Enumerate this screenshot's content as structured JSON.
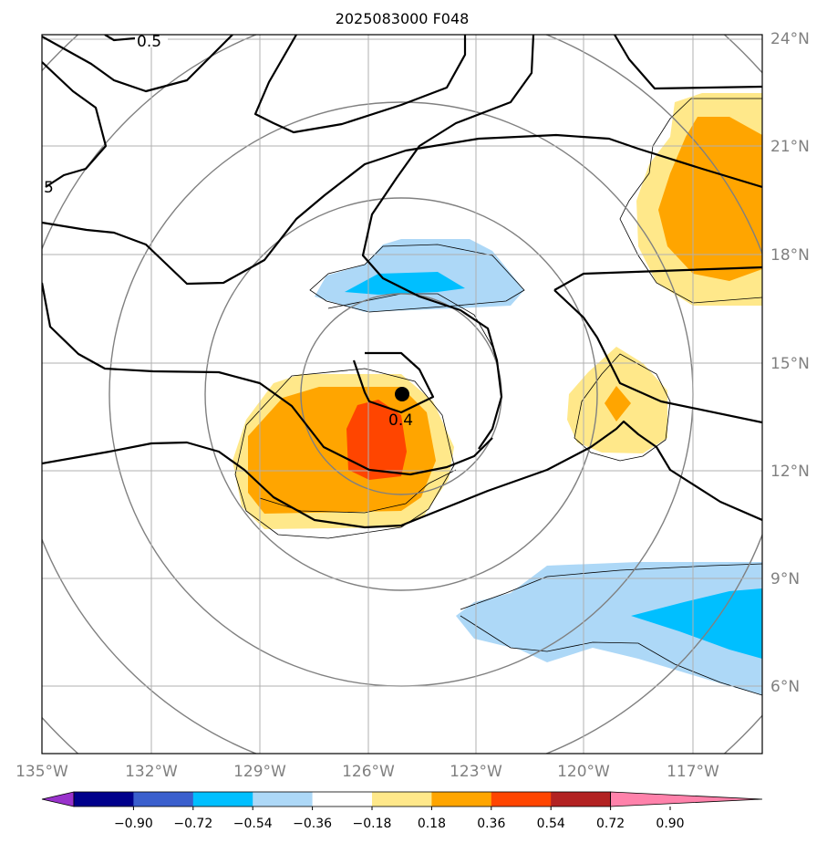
{
  "title": "2025083000 F048",
  "lon_labels": [
    "135°W",
    "132°W",
    "129°W",
    "126°W",
    "123°W",
    "120°W",
    "117°W"
  ],
  "lat_labels": [
    "24°N",
    "21°N",
    "18°N",
    "15°N",
    "12°N",
    "9°N",
    "6°N"
  ],
  "contour_labels": [
    "0.5",
    "5",
    "0.4"
  ],
  "colorbar": {
    "colors": [
      "#9932cc",
      "#00008b",
      "#3a5fcd",
      "#00bfff",
      "#add8f7",
      "#ffffff",
      "#ffe88a",
      "#ffa500",
      "#ff4500",
      "#b22222",
      "#ff82ab"
    ],
    "tick_labels": [
      "−0.90",
      "−0.72",
      "−0.54",
      "−0.36",
      "−0.18",
      "0.18",
      "0.36",
      "0.54",
      "0.72",
      "0.90"
    ]
  },
  "center_marker": {
    "lon": "125°W",
    "lat": "14.1°N"
  }
}
